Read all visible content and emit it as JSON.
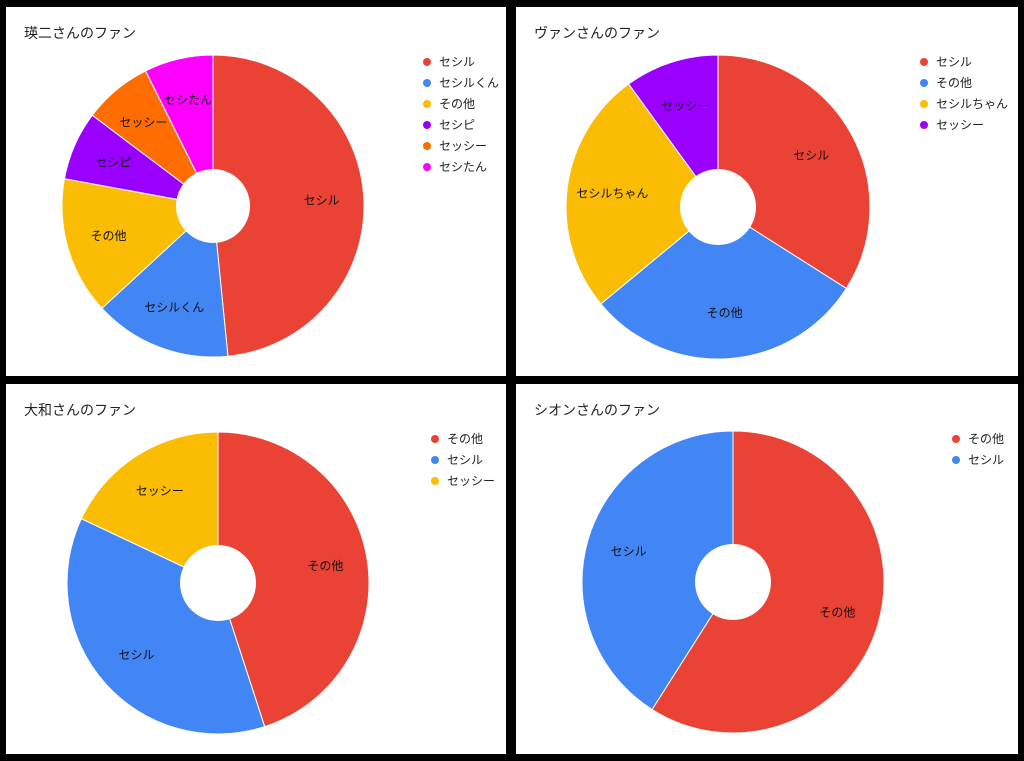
{
  "chart_data": [
    {
      "type": "pie",
      "title": "瑛二さんのファン",
      "categories": [
        "セシル",
        "セシルくん",
        "その他",
        "セシピ",
        "セッシー",
        "セシたん"
      ],
      "values": [
        46,
        14,
        14,
        7,
        7,
        7
      ],
      "colors": [
        "#EA4335",
        "#4285F4",
        "#FBBC04",
        "#9900FF",
        "#FF6D01",
        "#FF00FF"
      ],
      "donut": true,
      "legend": "right"
    },
    {
      "type": "pie",
      "title": "ヴァンさんのファン",
      "categories": [
        "セシル",
        "その他",
        "セシルちゃん",
        "セッシー"
      ],
      "values": [
        34,
        30,
        26,
        10
      ],
      "colors": [
        "#EA4335",
        "#4285F4",
        "#FBBC04",
        "#9900FF"
      ],
      "donut": true,
      "legend": "right"
    },
    {
      "type": "pie",
      "title": "大和さんのファン",
      "categories": [
        "その他",
        "セシル",
        "セッシー"
      ],
      "values": [
        45,
        37,
        18
      ],
      "colors": [
        "#EA4335",
        "#4285F4",
        "#FBBC04"
      ],
      "donut": true,
      "legend": "right"
    },
    {
      "type": "pie",
      "title": "シオンさんのファン",
      "categories": [
        "その他",
        "セシル"
      ],
      "values": [
        59,
        41
      ],
      "colors": [
        "#EA4335",
        "#4285F4"
      ],
      "donut": true,
      "legend": "right"
    }
  ]
}
